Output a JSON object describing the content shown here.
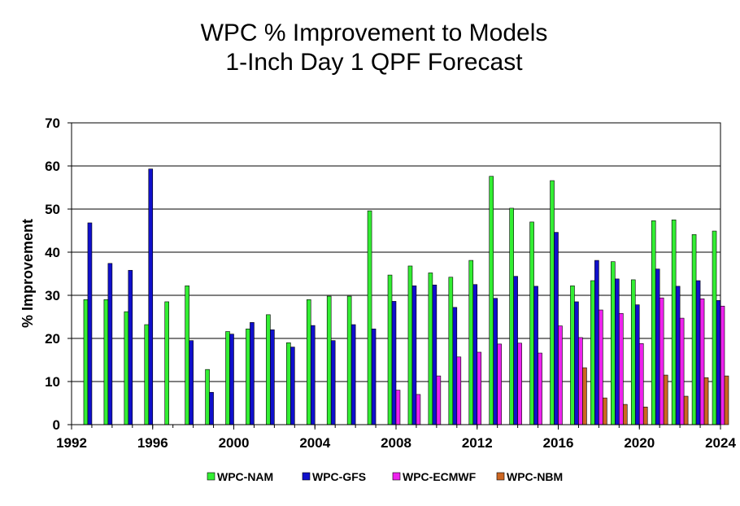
{
  "chart_data": {
    "type": "bar",
    "title": [
      "WPC % Improvement to Models",
      "1-Inch Day 1 QPF Forecast"
    ],
    "xlabel": "",
    "ylabel": "% Improvement",
    "xlim": [
      1992,
      2024
    ],
    "ylim": [
      0,
      70
    ],
    "x_ticks": [
      "1992",
      "1996",
      "2000",
      "2004",
      "2008",
      "2012",
      "2016",
      "2020",
      "2024"
    ],
    "y_ticks": [
      "0",
      "10",
      "20",
      "30",
      "40",
      "50",
      "60",
      "70"
    ],
    "grid": "horizontal",
    "legend_position": "bottom",
    "categories": [
      1993,
      1994,
      1995,
      1996,
      1997,
      1998,
      1999,
      2000,
      2001,
      2002,
      2003,
      2004,
      2005,
      2006,
      2007,
      2008,
      2009,
      2010,
      2011,
      2012,
      2013,
      2014,
      2015,
      2016,
      2017,
      2018,
      2019,
      2020,
      2021,
      2022,
      2023,
      2024
    ],
    "series": [
      {
        "name": "WPC-NAM",
        "color": "#33ee33",
        "values": [
          29,
          29,
          26.2,
          23.2,
          28.5,
          32.2,
          12.8,
          21.6,
          22.2,
          25.5,
          19,
          29,
          29.8,
          29.8,
          49.6,
          34.7,
          36.8,
          35.2,
          34.2,
          38.1,
          57.6,
          50.2,
          47,
          56.6,
          32.2,
          33.4,
          37.8,
          33.6,
          47.3,
          47.5,
          44.1,
          44.9
        ]
      },
      {
        "name": "WPC-GFS",
        "color": "#1010cc",
        "values": [
          46.8,
          37.4,
          35.8,
          59.3,
          null,
          19.5,
          7.5,
          21,
          23.7,
          22,
          18,
          23,
          19.5,
          23.2,
          22.2,
          28.6,
          32.2,
          32.4,
          27.2,
          32.5,
          29.3,
          34.4,
          32.1,
          44.6,
          28.5,
          38.1,
          33.8,
          27.8,
          36.1,
          32.1,
          33.4,
          28.8
        ]
      },
      {
        "name": "WPC-ECMWF",
        "color": "#ee22ee",
        "values": [
          null,
          null,
          null,
          null,
          null,
          null,
          null,
          null,
          null,
          null,
          null,
          null,
          null,
          null,
          null,
          8,
          7,
          11.3,
          15.7,
          16.8,
          18.7,
          18.9,
          16.6,
          22.9,
          20.2,
          26.6,
          25.8,
          18.8,
          29.4,
          24.7,
          29.2,
          27.5
        ]
      },
      {
        "name": "WPC-NBM",
        "color": "#cc6622",
        "values": [
          null,
          null,
          null,
          null,
          null,
          null,
          null,
          null,
          null,
          null,
          null,
          null,
          null,
          null,
          null,
          null,
          null,
          null,
          null,
          null,
          null,
          null,
          null,
          null,
          13.2,
          6.2,
          4.7,
          4.1,
          11.5,
          6.6,
          10.9,
          11.3
        ]
      }
    ]
  }
}
